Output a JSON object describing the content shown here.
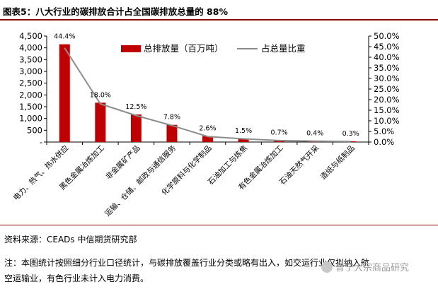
{
  "title": "图表5：八大行业的碳排放合计占全国碳排放总量的 88%",
  "source": "资料来源：CEADs    中信期货研究部",
  "note_lines": [
    "注：本图统计按照细分行业口径统计，与碳排放覆盖行业分类或略有出入，如交运行业仅拟纳入航",
    "空运输业，有色行业未计入电力消费。"
  ],
  "watermark": "普宁大宗商品研究",
  "chart_data": {
    "type": "bar",
    "categories": [
      "电力、热气、热水供应",
      "黑色金属冶炼加工",
      "非金属矿产品",
      "运输、仓储、邮政与通信服务",
      "化学原料与化学制品",
      "石油加工与炼焦",
      "有色金属冶炼加工",
      "石油天然气开采",
      "造纸与纸制品"
    ],
    "series": [
      {
        "name": "总排放量（百万吨）",
        "type": "bar",
        "axis": "left",
        "color": "#c00000",
        "values": [
          4150,
          1670,
          1170,
          730,
          250,
          150,
          70,
          40,
          30
        ]
      },
      {
        "name": "占总量比重",
        "type": "line",
        "axis": "right",
        "color": "#8c8c8c",
        "values": [
          44.4,
          18.0,
          12.5,
          7.8,
          2.6,
          1.5,
          0.7,
          0.4,
          0.3
        ]
      }
    ],
    "data_labels": [
      "44.4%",
      "18.0%",
      "12.5%",
      "7.8%",
      "2.6%",
      "1.5%",
      "0.7%",
      "0.4%",
      "0.3%"
    ],
    "y_left": {
      "ticks": [
        0,
        500,
        1000,
        1500,
        2000,
        2500,
        3000,
        3500,
        4000,
        4500
      ],
      "tick_labels": [
        "-",
        "500",
        "1,000",
        "1,500",
        "2,000",
        "2,500",
        "3,000",
        "3,500",
        "4,000",
        "4,500"
      ],
      "ylim": [
        0,
        4500
      ]
    },
    "y_right": {
      "ticks": [
        0,
        5,
        10,
        15,
        20,
        25,
        30,
        35,
        40,
        45,
        50
      ],
      "tick_labels": [
        "0.0%",
        "5.0%",
        "10.0%",
        "15.0%",
        "20.0%",
        "25.0%",
        "30.0%",
        "35.0%",
        "40.0%",
        "45.0%",
        "50.0%"
      ],
      "ylim": [
        0,
        50
      ]
    },
    "legend_position": "top-center",
    "grid": false
  }
}
